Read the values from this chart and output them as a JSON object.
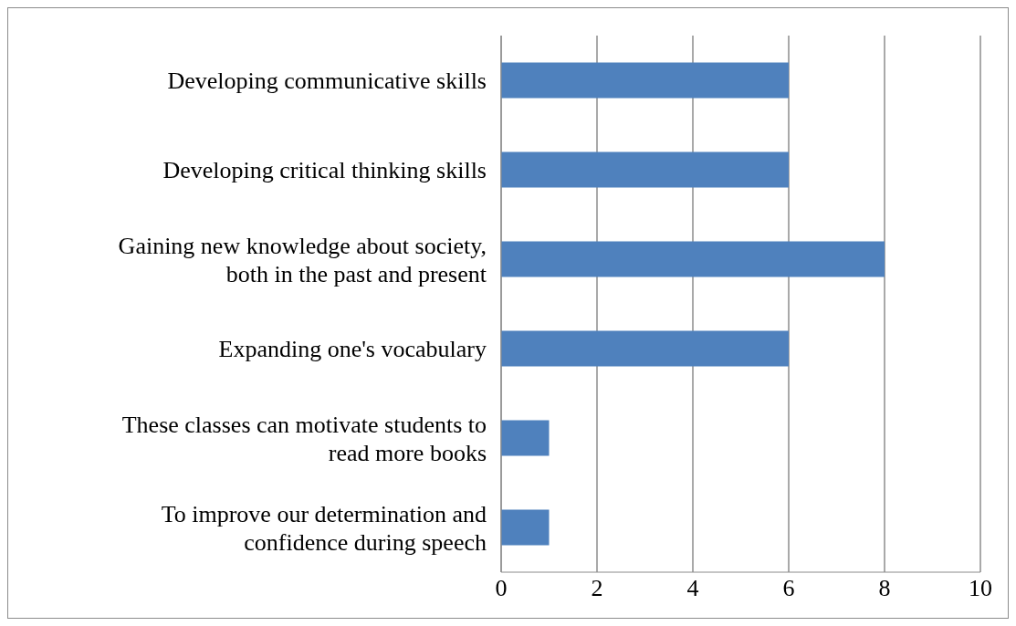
{
  "chart_data": {
    "type": "bar",
    "orientation": "horizontal",
    "categories": [
      "Developing communicative skills",
      "Developing critical thinking skills",
      "Gaining new knowledge about society, both in the past and present",
      "Expanding one's vocabulary",
      "These classes can motivate students to read more books",
      "To improve our determination and confidence during speech"
    ],
    "values": [
      6,
      6,
      8,
      6,
      1,
      1
    ],
    "color": "#4f81bd",
    "xlim": [
      0,
      10
    ],
    "xticks": [
      0,
      2,
      4,
      6,
      8,
      10
    ],
    "grid": "x"
  }
}
